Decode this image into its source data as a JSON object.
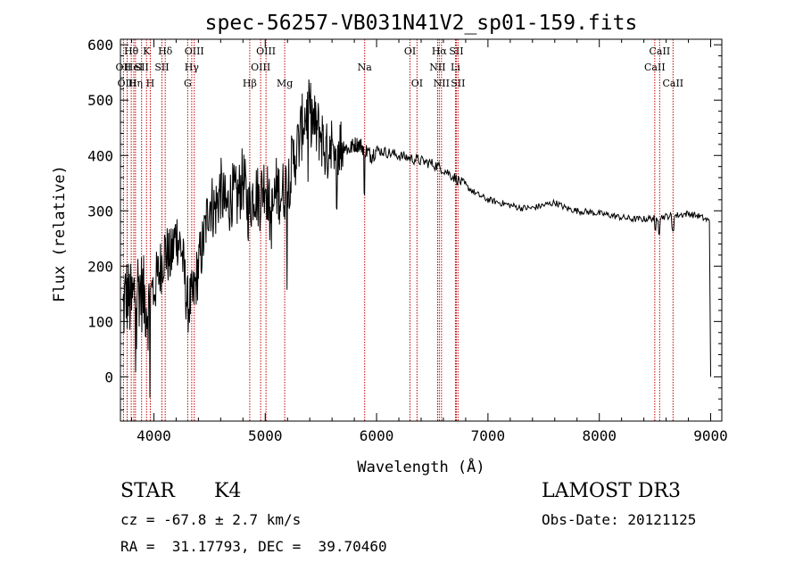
{
  "chart_data": {
    "type": "line",
    "title": "spec-56257-VB031N41V2_sp01-159.fits",
    "xlabel": "Wavelength (Å)",
    "ylabel": "Flux (relative)",
    "xlim": [
      3700,
      9100
    ],
    "ylim": [
      -80,
      610
    ],
    "xticks": [
      4000,
      5000,
      6000,
      7000,
      8000,
      9000
    ],
    "yticks": [
      0,
      100,
      200,
      300,
      400,
      500,
      600
    ],
    "spectrum_anchors": {
      "x": [
        3700,
        3750,
        3800,
        3850,
        3900,
        3950,
        4000,
        4050,
        4100,
        4150,
        4200,
        4250,
        4300,
        4350,
        4400,
        4450,
        4500,
        4550,
        4600,
        4650,
        4700,
        4750,
        4800,
        4850,
        4900,
        4950,
        5000,
        5050,
        5100,
        5150,
        5200,
        5250,
        5300,
        5350,
        5400,
        5450,
        5500,
        5550,
        5600,
        5650,
        5700,
        5750,
        5800,
        5850,
        5900,
        5950,
        6000,
        6100,
        6200,
        6300,
        6400,
        6500,
        6600,
        6700,
        6800,
        6900,
        7000,
        7100,
        7200,
        7300,
        7400,
        7500,
        7600,
        7700,
        7800,
        7900,
        8000,
        8100,
        8200,
        8300,
        8400,
        8500,
        8600,
        8700,
        8800,
        8900,
        9000
      ],
      "y": [
        90,
        150,
        130,
        170,
        150,
        120,
        160,
        190,
        230,
        210,
        260,
        230,
        130,
        140,
        200,
        250,
        320,
        300,
        340,
        300,
        330,
        320,
        360,
        300,
        340,
        320,
        360,
        280,
        340,
        330,
        350,
        390,
        420,
        470,
        480,
        450,
        440,
        400,
        440,
        420,
        420,
        410,
        420,
        420,
        410,
        400,
        410,
        405,
        400,
        395,
        390,
        385,
        375,
        360,
        345,
        330,
        320,
        315,
        310,
        305,
        305,
        310,
        315,
        305,
        300,
        298,
        295,
        292,
        288,
        285,
        285,
        287,
        290,
        292,
        295,
        290,
        280
      ]
    },
    "lines": [
      {
        "label": "Hθ",
        "x": 3797,
        "row": 0
      },
      {
        "label": "OII",
        "x": 3727,
        "row": 1
      },
      {
        "label": "OIII",
        "x": 3760,
        "row": 2
      },
      {
        "label": "HeI",
        "x": 3820,
        "row": 1
      },
      {
        "label": "Hη",
        "x": 3835,
        "row": 2
      },
      {
        "label": "K",
        "x": 3934,
        "row": 0
      },
      {
        "label": "SII",
        "x": 3890,
        "row": 1
      },
      {
        "label": "H",
        "x": 3968,
        "row": 2
      },
      {
        "label": "Hδ",
        "x": 4102,
        "row": 0
      },
      {
        "label": "SII",
        "x": 4072,
        "row": 1
      },
      {
        "label": "OIII",
        "x": 4363,
        "row": 0
      },
      {
        "label": "Hγ",
        "x": 4340,
        "row": 1
      },
      {
        "label": "G",
        "x": 4304,
        "row": 2
      },
      {
        "label": "Hβ",
        "x": 4861,
        "row": 2
      },
      {
        "label": "OIII",
        "x": 5007,
        "row": 0
      },
      {
        "label": "OIII",
        "x": 4959,
        "row": 1
      },
      {
        "label": "Mg",
        "x": 5175,
        "row": 2
      },
      {
        "label": "Na",
        "x": 5893,
        "row": 1
      },
      {
        "label": "OI",
        "x": 6300,
        "row": 0
      },
      {
        "label": "OI",
        "x": 6363,
        "row": 2
      },
      {
        "label": "Hα",
        "x": 6563,
        "row": 0
      },
      {
        "label": "SII",
        "x": 6716,
        "row": 0
      },
      {
        "label": "NII",
        "x": 6548,
        "row": 1
      },
      {
        "label": "Li",
        "x": 6708,
        "row": 1
      },
      {
        "label": "NII",
        "x": 6583,
        "row": 2
      },
      {
        "label": "SII",
        "x": 6731,
        "row": 2
      },
      {
        "label": "CaII",
        "x": 8542,
        "row": 0
      },
      {
        "label": "CaII",
        "x": 8498,
        "row": 1
      },
      {
        "label": "CaII",
        "x": 8662,
        "row": 2
      }
    ]
  },
  "info": {
    "class": "STAR",
    "subclass": "K4",
    "survey": "LAMOST DR3",
    "cz": "cz = -67.8 ± 2.7 km/s",
    "obs_date": "Obs-Date: 20121125",
    "coords": "RA =  31.17793, DEC =  39.70460"
  }
}
